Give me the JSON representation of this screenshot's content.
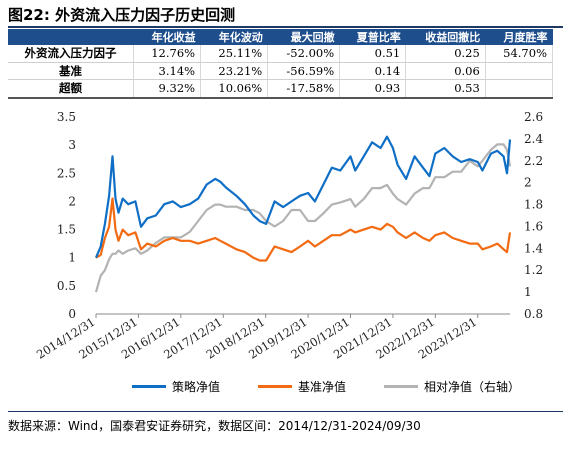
{
  "figure_title": "图22: 外资流入压力因子历史回测",
  "table": {
    "headers": [
      "",
      "年化收益",
      "年化波动",
      "最大回撤",
      "夏普比率",
      "收益回撤比",
      "月度胜率"
    ],
    "rows": [
      [
        "外资流入压力因子",
        "12.76%",
        "25.11%",
        "-52.00%",
        "0.51",
        "0.25",
        "54.70%"
      ],
      [
        "基准",
        "3.14%",
        "23.21%",
        "-56.59%",
        "0.14",
        "0.06",
        ""
      ],
      [
        "超额",
        "9.32%",
        "10.06%",
        "-17.58%",
        "0.93",
        "0.53",
        ""
      ]
    ]
  },
  "legend": {
    "strategy": "策略净值",
    "benchmark": "基准净值",
    "relative": "相对净值（右轴）"
  },
  "source": "数据来源：Wind，国泰君安证券研究，数据区间：2014/12/31-2024/09/30",
  "colors": {
    "strategy": "#0f6fc6",
    "benchmark": "#f26a11",
    "relative": "#b3b3b3",
    "header_bg": "#1e4e8c"
  },
  "chart_data": {
    "type": "line",
    "x_ticks": [
      "2014/12/31",
      "2015/12/31",
      "2016/12/31",
      "2017/12/31",
      "2018/12/31",
      "2019/12/31",
      "2020/12/31",
      "2021/12/31",
      "2022/12/31",
      "2023/12/31"
    ],
    "y_left": {
      "ylim": [
        0,
        3.5
      ],
      "ticks": [
        "0",
        "0.5",
        "1",
        "1.5",
        "2",
        "2.5",
        "3",
        "3.5"
      ],
      "tick_values": [
        0,
        0.5,
        1,
        1.5,
        2,
        2.5,
        3,
        3.5
      ]
    },
    "y_right": {
      "ylim": [
        0.8,
        2.6
      ],
      "ticks": [
        "0.8",
        "1",
        "1.2",
        "1.4",
        "1.6",
        "1.8",
        "2",
        "2.2",
        "2.4",
        "2.6"
      ],
      "tick_values": [
        0.8,
        1.0,
        1.2,
        1.4,
        1.6,
        1.8,
        2.0,
        2.2,
        2.4,
        2.6
      ]
    },
    "x_range": [
      2014.99,
      2024.75
    ],
    "series": [
      {
        "name": "策略净值",
        "axis": "left",
        "x": [
          2014.99,
          2015.1,
          2015.2,
          2015.3,
          2015.38,
          2015.45,
          2015.52,
          2015.62,
          2015.75,
          2015.92,
          2016.05,
          2016.2,
          2016.4,
          2016.6,
          2016.8,
          2016.99,
          2017.2,
          2017.4,
          2017.6,
          2017.8,
          2017.92,
          2018.05,
          2018.3,
          2018.5,
          2018.7,
          2018.85,
          2019.0,
          2019.2,
          2019.4,
          2019.6,
          2019.8,
          2019.99,
          2020.15,
          2020.35,
          2020.55,
          2020.75,
          2020.99,
          2021.1,
          2021.3,
          2021.5,
          2021.7,
          2021.85,
          2021.99,
          2022.1,
          2022.3,
          2022.5,
          2022.7,
          2022.85,
          2022.99,
          2023.2,
          2023.4,
          2023.6,
          2023.8,
          2023.99,
          2024.1,
          2024.3,
          2024.45,
          2024.6,
          2024.68,
          2024.75
        ],
        "y": [
          1.0,
          1.2,
          1.6,
          2.1,
          2.8,
          2.05,
          1.8,
          2.05,
          1.95,
          2.0,
          1.55,
          1.7,
          1.75,
          1.95,
          2.0,
          1.9,
          1.95,
          2.05,
          2.3,
          2.4,
          2.35,
          2.25,
          2.1,
          1.95,
          1.75,
          1.65,
          1.6,
          2.0,
          1.9,
          2.0,
          2.1,
          2.15,
          2.0,
          2.3,
          2.6,
          2.55,
          2.8,
          2.55,
          2.8,
          3.05,
          2.95,
          3.15,
          2.95,
          2.65,
          2.4,
          2.8,
          2.6,
          2.45,
          2.85,
          2.95,
          2.8,
          2.7,
          2.75,
          2.7,
          2.55,
          2.85,
          2.9,
          2.8,
          2.5,
          3.1
        ]
      },
      {
        "name": "基准净值",
        "axis": "left",
        "x": [
          2014.99,
          2015.1,
          2015.2,
          2015.3,
          2015.38,
          2015.45,
          2015.52,
          2015.62,
          2015.75,
          2015.92,
          2016.05,
          2016.2,
          2016.4,
          2016.6,
          2016.8,
          2016.99,
          2017.2,
          2017.4,
          2017.6,
          2017.8,
          2017.92,
          2018.05,
          2018.3,
          2018.5,
          2018.7,
          2018.85,
          2019.0,
          2019.2,
          2019.4,
          2019.6,
          2019.8,
          2019.99,
          2020.15,
          2020.35,
          2020.55,
          2020.75,
          2020.99,
          2021.1,
          2021.3,
          2021.5,
          2021.7,
          2021.85,
          2021.99,
          2022.1,
          2022.3,
          2022.5,
          2022.7,
          2022.85,
          2022.99,
          2023.2,
          2023.4,
          2023.6,
          2023.8,
          2023.99,
          2024.1,
          2024.3,
          2024.45,
          2024.6,
          2024.68,
          2024.75
        ],
        "y": [
          1.0,
          1.05,
          1.35,
          1.55,
          2.05,
          1.5,
          1.3,
          1.5,
          1.4,
          1.45,
          1.15,
          1.25,
          1.2,
          1.3,
          1.35,
          1.3,
          1.3,
          1.25,
          1.3,
          1.35,
          1.3,
          1.25,
          1.15,
          1.1,
          1.0,
          0.95,
          0.95,
          1.2,
          1.15,
          1.1,
          1.2,
          1.3,
          1.2,
          1.3,
          1.4,
          1.4,
          1.5,
          1.45,
          1.5,
          1.55,
          1.5,
          1.6,
          1.55,
          1.45,
          1.35,
          1.45,
          1.35,
          1.3,
          1.4,
          1.45,
          1.35,
          1.3,
          1.25,
          1.25,
          1.15,
          1.2,
          1.25,
          1.15,
          1.1,
          1.45
        ]
      },
      {
        "name": "相对净值（右轴）",
        "axis": "right",
        "x": [
          2014.99,
          2015.1,
          2015.2,
          2015.3,
          2015.38,
          2015.45,
          2015.52,
          2015.62,
          2015.75,
          2015.92,
          2016.05,
          2016.2,
          2016.4,
          2016.6,
          2016.8,
          2016.99,
          2017.2,
          2017.4,
          2017.6,
          2017.8,
          2017.92,
          2018.05,
          2018.3,
          2018.5,
          2018.7,
          2018.85,
          2019.0,
          2019.2,
          2019.4,
          2019.6,
          2019.8,
          2019.99,
          2020.15,
          2020.35,
          2020.55,
          2020.75,
          2020.99,
          2021.1,
          2021.3,
          2021.5,
          2021.7,
          2021.85,
          2021.99,
          2022.1,
          2022.3,
          2022.5,
          2022.7,
          2022.85,
          2022.99,
          2023.2,
          2023.4,
          2023.6,
          2023.8,
          2023.99,
          2024.1,
          2024.3,
          2024.45,
          2024.6,
          2024.68,
          2024.75
        ],
        "y": [
          1.0,
          1.15,
          1.2,
          1.3,
          1.35,
          1.35,
          1.38,
          1.35,
          1.38,
          1.4,
          1.35,
          1.38,
          1.45,
          1.5,
          1.5,
          1.5,
          1.55,
          1.65,
          1.75,
          1.8,
          1.8,
          1.78,
          1.78,
          1.75,
          1.75,
          1.72,
          1.65,
          1.6,
          1.65,
          1.75,
          1.75,
          1.65,
          1.65,
          1.72,
          1.8,
          1.82,
          1.85,
          1.78,
          1.85,
          1.95,
          1.95,
          1.98,
          1.9,
          1.85,
          1.8,
          1.9,
          1.95,
          1.95,
          2.05,
          2.05,
          2.1,
          2.1,
          2.2,
          2.15,
          2.2,
          2.3,
          2.35,
          2.35,
          2.3,
          2.15
        ]
      }
    ]
  }
}
